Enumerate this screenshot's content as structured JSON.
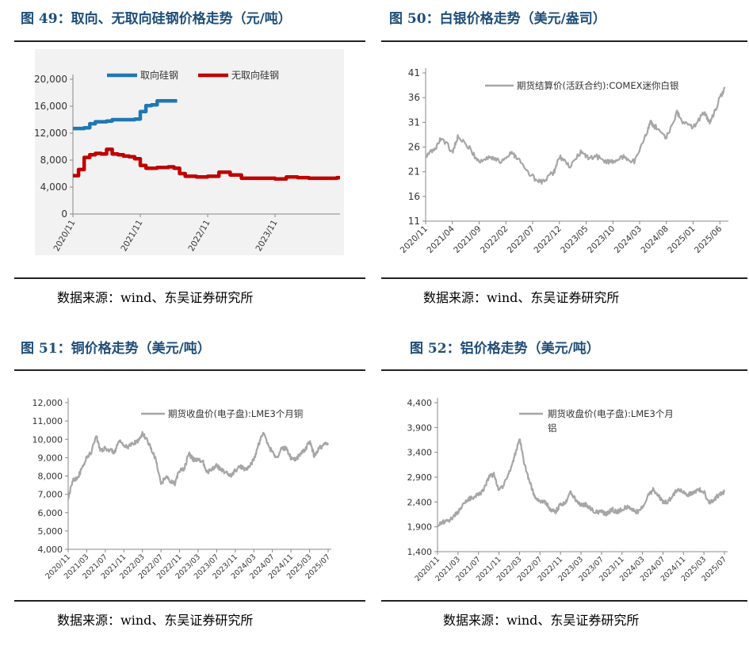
{
  "charts": {
    "c49": {
      "title": "图 49：取向、无取向硅钢价格走势（元/吨）",
      "source": "数据来源：wind、东吴证券研究所"
    },
    "c50": {
      "title": "图 50：白银价格走势（美元/盎司）",
      "source": "数据来源：wind、东吴证券研究所"
    },
    "c51": {
      "title": "图 51：铜价格走势（美元/吨）",
      "source": "数据来源：wind、东吴证券研究所"
    },
    "c52": {
      "title": "图 52：铝价格走势（美元/吨）",
      "source": "数据来源：wind、东吴证券研究所"
    }
  },
  "colors": {
    "title": "#1f4e79",
    "blue": "#1f77b4",
    "red": "#c00000",
    "gray": "#a6a6a6"
  },
  "chart_data": [
    {
      "id": "c49",
      "type": "line",
      "x_ticks": [
        "2020/11",
        "2021/11",
        "2022/11",
        "2023/11"
      ],
      "y_ticks": [
        "0",
        "4,000",
        "8,000",
        "12,000",
        "16,000",
        "20,000"
      ],
      "ylim": [
        0,
        20000
      ],
      "xlim": [
        "2020-11",
        "2024-10"
      ],
      "grid": false,
      "legend": "top",
      "series": [
        {
          "name": "取向硅钢",
          "color": "#1f77b4",
          "points": [
            [
              "2020-11",
              12700
            ],
            [
              "2021-01",
              12800
            ],
            [
              "2021-02",
              13400
            ],
            [
              "2021-03",
              13700
            ],
            [
              "2021-05",
              13800
            ],
            [
              "2021-06",
              14000
            ],
            [
              "2021-10",
              14100
            ],
            [
              "2021-11",
              15200
            ],
            [
              "2021-12",
              16100
            ],
            [
              "2022-01",
              16200
            ],
            [
              "2022-02",
              16800
            ],
            [
              "2022-05",
              16800
            ]
          ]
        },
        {
          "name": "无取向硅钢",
          "color": "#c00000",
          "points": [
            [
              "2020-11",
              5700
            ],
            [
              "2020-12",
              6600
            ],
            [
              "2021-01",
              8400
            ],
            [
              "2021-02",
              8800
            ],
            [
              "2021-03",
              9000
            ],
            [
              "2021-04",
              8900
            ],
            [
              "2021-05",
              9600
            ],
            [
              "2021-06",
              8900
            ],
            [
              "2021-07",
              8800
            ],
            [
              "2021-08",
              8600
            ],
            [
              "2021-09",
              8500
            ],
            [
              "2021-10",
              8200
            ],
            [
              "2021-11",
              7200
            ],
            [
              "2021-12",
              6800
            ],
            [
              "2022-02",
              6900
            ],
            [
              "2022-04",
              7000
            ],
            [
              "2022-05",
              6800
            ],
            [
              "2022-06",
              6000
            ],
            [
              "2022-07",
              5600
            ],
            [
              "2022-09",
              5500
            ],
            [
              "2022-11",
              5600
            ],
            [
              "2023-01",
              6200
            ],
            [
              "2023-03",
              5800
            ],
            [
              "2023-05",
              5300
            ],
            [
              "2023-08",
              5300
            ],
            [
              "2023-11",
              5200
            ],
            [
              "2024-01",
              5500
            ],
            [
              "2024-03",
              5400
            ],
            [
              "2024-05",
              5300
            ],
            [
              "2024-10",
              5400
            ]
          ]
        }
      ]
    },
    {
      "id": "c50",
      "type": "line",
      "x_ticks": [
        "2020/11",
        "2021/04",
        "2021/09",
        "2022/02",
        "2022/07",
        "2022/12",
        "2023/05",
        "2023/10",
        "2024/03",
        "2024/08",
        "2025/01",
        "2025/06"
      ],
      "y_ticks": [
        "11",
        "16",
        "21",
        "26",
        "31",
        "36",
        "41"
      ],
      "ylim": [
        11,
        41
      ],
      "xlim": [
        "2020-11",
        "2025-07"
      ],
      "grid": false,
      "legend": "top",
      "series": [
        {
          "name": "期货结算价(活跃合约):COMEX迷你白银",
          "color": "#a6a6a6",
          "points": [
            [
              "2020-11",
              24
            ],
            [
              "2021-01",
              26
            ],
            [
              "2021-02",
              28
            ],
            [
              "2021-04",
              25
            ],
            [
              "2021-05",
              28
            ],
            [
              "2021-07",
              26
            ],
            [
              "2021-09",
              23
            ],
            [
              "2021-11",
              24
            ],
            [
              "2022-01",
              23
            ],
            [
              "2022-03",
              25
            ],
            [
              "2022-04",
              24
            ],
            [
              "2022-06",
              21
            ],
            [
              "2022-08",
              19
            ],
            [
              "2022-09",
              19
            ],
            [
              "2022-11",
              21
            ],
            [
              "2022-12",
              24
            ],
            [
              "2023-02",
              22
            ],
            [
              "2023-04",
              25
            ],
            [
              "2023-05",
              24
            ],
            [
              "2023-07",
              24
            ],
            [
              "2023-09",
              23
            ],
            [
              "2023-10",
              23
            ],
            [
              "2023-12",
              24
            ],
            [
              "2024-02",
              23
            ],
            [
              "2024-04",
              28
            ],
            [
              "2024-05",
              31
            ],
            [
              "2024-06",
              30
            ],
            [
              "2024-08",
              28
            ],
            [
              "2024-10",
              33
            ],
            [
              "2024-11",
              31
            ],
            [
              "2025-01",
              30
            ],
            [
              "2025-03",
              33
            ],
            [
              "2025-04",
              31
            ],
            [
              "2025-05",
              33
            ],
            [
              "2025-06",
              36
            ],
            [
              "2025-07",
              38
            ]
          ]
        }
      ]
    },
    {
      "id": "c51",
      "type": "line",
      "x_ticks": [
        "2020/11",
        "2021/03",
        "2021/07",
        "2021/11",
        "2022/03",
        "2022/07",
        "2022/11",
        "2023/03",
        "2023/07",
        "2023/11",
        "2024/03",
        "2024/07",
        "2024/11",
        "2025/03",
        "2025/07"
      ],
      "y_ticks": [
        "4,000",
        "5,000",
        "6,000",
        "7,000",
        "8,000",
        "9,000",
        "10,000",
        "11,000",
        "12,000"
      ],
      "ylim": [
        4000,
        12000
      ],
      "xlim": [
        "2020-11",
        "2025-07"
      ],
      "grid": false,
      "legend": "top",
      "series": [
        {
          "name": "期货收盘价(电子盘):LME3个月铜",
          "color": "#a6a6a6",
          "points": [
            [
              "2020-11",
              6700
            ],
            [
              "2020-12",
              7800
            ],
            [
              "2021-01",
              7900
            ],
            [
              "2021-02",
              8400
            ],
            [
              "2021-03",
              9000
            ],
            [
              "2021-04",
              9300
            ],
            [
              "2021-05",
              10200
            ],
            [
              "2021-06",
              9400
            ],
            [
              "2021-07",
              9500
            ],
            [
              "2021-08",
              9400
            ],
            [
              "2021-09",
              9300
            ],
            [
              "2021-10",
              9900
            ],
            [
              "2021-11",
              9600
            ],
            [
              "2021-12",
              9600
            ],
            [
              "2022-01",
              9800
            ],
            [
              "2022-02",
              9900
            ],
            [
              "2022-03",
              10300
            ],
            [
              "2022-04",
              10000
            ],
            [
              "2022-05",
              9400
            ],
            [
              "2022-06",
              8800
            ],
            [
              "2022-07",
              7500
            ],
            [
              "2022-08",
              8000
            ],
            [
              "2022-09",
              7700
            ],
            [
              "2022-10",
              7600
            ],
            [
              "2022-11",
              8300
            ],
            [
              "2022-12",
              8400
            ],
            [
              "2023-01",
              9200
            ],
            [
              "2023-02",
              8900
            ],
            [
              "2023-03",
              8900
            ],
            [
              "2023-04",
              8800
            ],
            [
              "2023-05",
              8200
            ],
            [
              "2023-06",
              8400
            ],
            [
              "2023-07",
              8600
            ],
            [
              "2023-08",
              8300
            ],
            [
              "2023-09",
              8200
            ],
            [
              "2023-10",
              8000
            ],
            [
              "2023-11",
              8300
            ],
            [
              "2023-12",
              8500
            ],
            [
              "2024-01",
              8400
            ],
            [
              "2024-02",
              8500
            ],
            [
              "2024-03",
              8900
            ],
            [
              "2024-04",
              9700
            ],
            [
              "2024-05",
              10400
            ],
            [
              "2024-06",
              9700
            ],
            [
              "2024-07",
              9300
            ],
            [
              "2024-08",
              9000
            ],
            [
              "2024-09",
              9500
            ],
            [
              "2024-10",
              9500
            ],
            [
              "2024-11",
              9000
            ],
            [
              "2024-12",
              8900
            ],
            [
              "2025-01",
              9200
            ],
            [
              "2025-02",
              9400
            ],
            [
              "2025-03",
              9900
            ],
            [
              "2025-04",
              9100
            ],
            [
              "2025-05",
              9500
            ],
            [
              "2025-06",
              9700
            ],
            [
              "2025-07",
              9800
            ]
          ]
        }
      ]
    },
    {
      "id": "c52",
      "type": "line",
      "x_ticks": [
        "2020/11",
        "2021/03",
        "2021/07",
        "2021/11",
        "2022/03",
        "2022/07",
        "2022/11",
        "2023/03",
        "2023/07",
        "2023/11",
        "2024/03",
        "2024/07",
        "2024/11",
        "2025/03",
        "2025/07"
      ],
      "y_ticks": [
        "1,400",
        "1,900",
        "2,400",
        "2,900",
        "3,400",
        "3,900",
        "4,400"
      ],
      "ylim": [
        1400,
        4400
      ],
      "xlim": [
        "2020-11",
        "2025-07"
      ],
      "grid": false,
      "legend": "top",
      "series": [
        {
          "name": "期货收盘价(电子盘):LME3个月铝",
          "color": "#a6a6a6",
          "points": [
            [
              "2020-11",
              1900
            ],
            [
              "2020-12",
              2000
            ],
            [
              "2021-01",
              2000
            ],
            [
              "2021-02",
              2100
            ],
            [
              "2021-03",
              2200
            ],
            [
              "2021-04",
              2350
            ],
            [
              "2021-05",
              2450
            ],
            [
              "2021-06",
              2500
            ],
            [
              "2021-07",
              2550
            ],
            [
              "2021-08",
              2650
            ],
            [
              "2021-09",
              2900
            ],
            [
              "2021-10",
              2950
            ],
            [
              "2021-11",
              2650
            ],
            [
              "2021-12",
              2750
            ],
            [
              "2022-01",
              3000
            ],
            [
              "2022-02",
              3300
            ],
            [
              "2022-03",
              3700
            ],
            [
              "2022-04",
              3150
            ],
            [
              "2022-05",
              2800
            ],
            [
              "2022-06",
              2500
            ],
            [
              "2022-07",
              2400
            ],
            [
              "2022-08",
              2400
            ],
            [
              "2022-09",
              2250
            ],
            [
              "2022-10",
              2200
            ],
            [
              "2022-11",
              2350
            ],
            [
              "2022-12",
              2400
            ],
            [
              "2023-01",
              2600
            ],
            [
              "2023-02",
              2450
            ],
            [
              "2023-03",
              2350
            ],
            [
              "2023-04",
              2350
            ],
            [
              "2023-05",
              2250
            ],
            [
              "2023-06",
              2200
            ],
            [
              "2023-07",
              2200
            ],
            [
              "2023-08",
              2150
            ],
            [
              "2023-09",
              2250
            ],
            [
              "2023-10",
              2200
            ],
            [
              "2023-11",
              2250
            ],
            [
              "2023-12",
              2300
            ],
            [
              "2024-01",
              2250
            ],
            [
              "2024-02",
              2200
            ],
            [
              "2024-03",
              2300
            ],
            [
              "2024-04",
              2500
            ],
            [
              "2024-05",
              2650
            ],
            [
              "2024-06",
              2550
            ],
            [
              "2024-07",
              2400
            ],
            [
              "2024-08",
              2400
            ],
            [
              "2024-09",
              2550
            ],
            [
              "2024-10",
              2650
            ],
            [
              "2024-11",
              2600
            ],
            [
              "2024-12",
              2550
            ],
            [
              "2025-01",
              2600
            ],
            [
              "2025-02",
              2650
            ],
            [
              "2025-03",
              2600
            ],
            [
              "2025-04",
              2400
            ],
            [
              "2025-05",
              2450
            ],
            [
              "2025-06",
              2550
            ],
            [
              "2025-07",
              2600
            ]
          ]
        }
      ]
    }
  ]
}
